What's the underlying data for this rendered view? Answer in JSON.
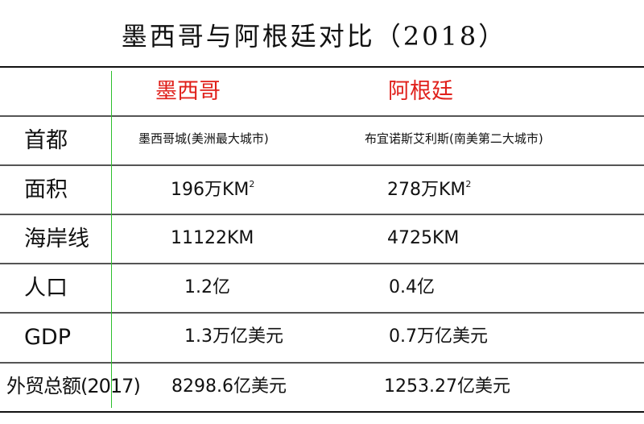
{
  "title": "墨西哥与阿根廷对比（2018）",
  "columns": [
    "墨西哥",
    "阿根廷"
  ],
  "header_color": "#e0201b",
  "rows": [
    {
      "label": "首都",
      "mexico": "墨西哥城(美洲最大城市)",
      "argentina": "布宜诺斯艾利斯(南美第二大城市)"
    },
    {
      "label": "面积",
      "mexico": "196万KM",
      "mexico_sup": "2",
      "argentina": "278万KM",
      "argentina_sup": "2"
    },
    {
      "label": "海岸线",
      "mexico": "11122KM",
      "argentina": "4725KM"
    },
    {
      "label": "人口",
      "mexico": "1.2亿",
      "argentina": "0.4亿"
    },
    {
      "label": "GDP",
      "mexico": "1.3万亿美元",
      "argentina": "0.7万亿美元"
    },
    {
      "label": "外贸总额(2017)",
      "mexico": "8298.6亿美元",
      "argentina": "1253.27亿美元"
    }
  ]
}
